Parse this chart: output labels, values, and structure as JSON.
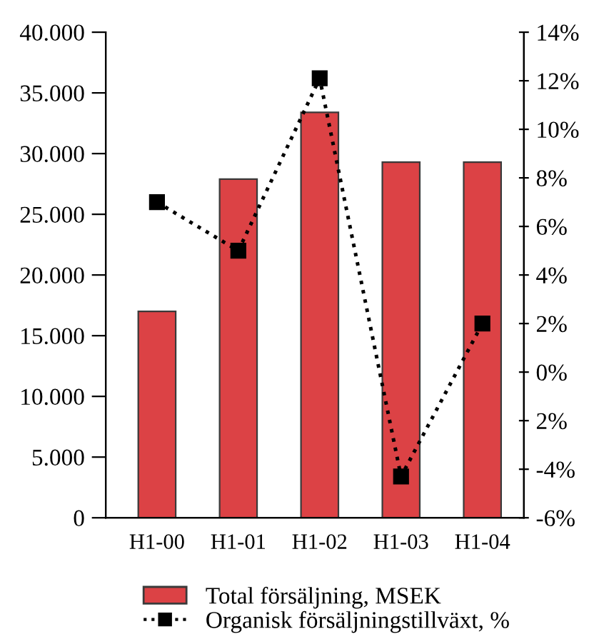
{
  "chart_data": {
    "type": "bar",
    "categories": [
      "H1-00",
      "H1-01",
      "H1-02",
      "H1-03",
      "H1-04"
    ],
    "series": [
      {
        "name": "Total försäljning, MSEK",
        "color": "#dc4245",
        "values": [
          17000,
          27900,
          33400,
          29300,
          29300
        ]
      },
      {
        "name": "Organisk försäljningstillväxt, %",
        "type": "line",
        "axis": "y2",
        "color": "#000000",
        "marker": "square",
        "line_style": "dotted",
        "values": [
          7,
          5,
          12.1,
          -4.3,
          2
        ]
      }
    ],
    "ylim": [
      0,
      40000
    ],
    "yticks": [
      0,
      {
        "value": 5000,
        "label": "5.000"
      },
      {
        "value": 10000,
        "label": "10.000"
      },
      {
        "value": 15000,
        "label": "15.000"
      },
      {
        "value": 20000,
        "label": "20.000"
      },
      {
        "value": 25000,
        "label": "25.000"
      },
      {
        "value": 30000,
        "label": "30.000"
      },
      {
        "value": 35000,
        "label": "35.000"
      },
      {
        "value": 40000,
        "label": "40.000"
      }
    ],
    "y2lim": [
      -6,
      14
    ],
    "y2ticks": [
      {
        "value": -6,
        "label": "-6%"
      },
      {
        "value": -4,
        "label": "-4%"
      },
      {
        "value": -2,
        "label": "2%"
      },
      {
        "value": 0,
        "label": "0%"
      },
      {
        "value": 2,
        "label": "2%"
      },
      {
        "value": 4,
        "label": "4%"
      },
      {
        "value": 6,
        "label": "6%"
      },
      {
        "value": 8,
        "label": "8%"
      },
      {
        "value": 10,
        "label": "10%"
      },
      {
        "value": 12,
        "label": "12%"
      },
      {
        "value": 14,
        "label": "14%"
      }
    ],
    "grid": false,
    "legend": "bottom"
  }
}
